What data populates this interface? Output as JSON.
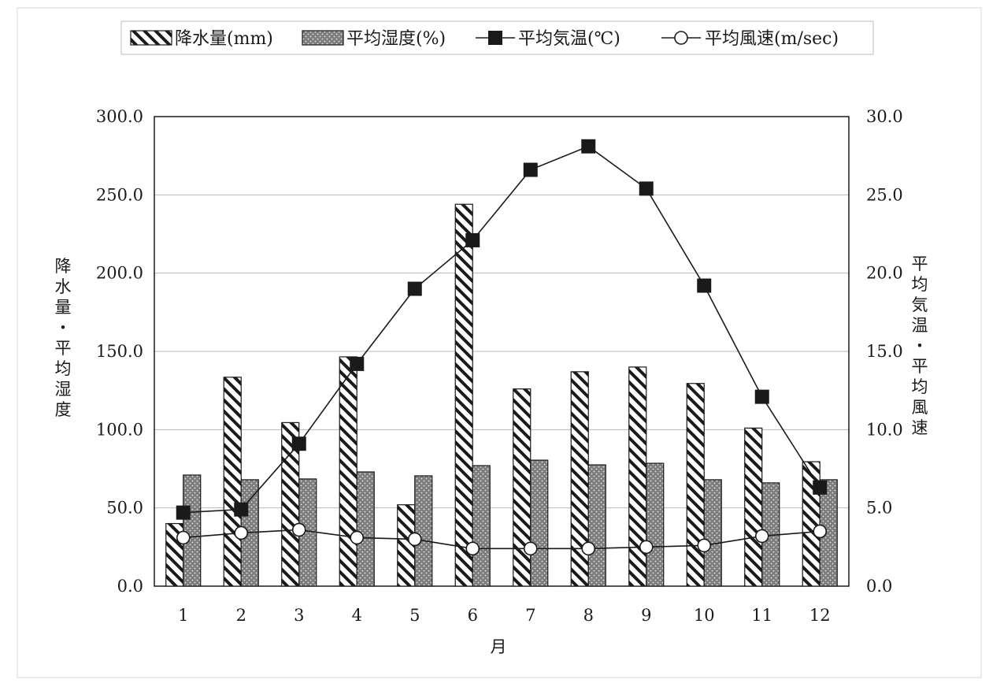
{
  "chart_data": {
    "type": "bar",
    "categories": [
      "1",
      "2",
      "3",
      "4",
      "5",
      "6",
      "7",
      "8",
      "9",
      "10",
      "11",
      "12"
    ],
    "xlabel": "月",
    "ylabel_left": "降水量・平均湿度",
    "ylabel_right": "平均気温・平均風速",
    "ylim_left": [
      0,
      300
    ],
    "ylim_right": [
      0,
      30
    ],
    "y_ticks_left": [
      "0.0",
      "50.0",
      "100.0",
      "150.0",
      "200.0",
      "250.0",
      "300.0"
    ],
    "y_ticks_right": [
      "0.0",
      "5.0",
      "10.0",
      "15.0",
      "20.0",
      "25.0",
      "30.0"
    ],
    "grid": true,
    "legend_position": "top",
    "series": [
      {
        "name": "降水量(mm)",
        "kind": "bar",
        "axis": "left",
        "pattern": "diagonal-hatch",
        "values": [
          40.0,
          133.5,
          104.5,
          146.5,
          52.0,
          244.0,
          126.0,
          137.0,
          140.0,
          129.5,
          101.0,
          79.5
        ]
      },
      {
        "name": "平均湿度(%)",
        "kind": "bar",
        "axis": "left",
        "pattern": "dotted",
        "values": [
          71.0,
          68.0,
          68.5,
          73.0,
          70.5,
          77.0,
          80.5,
          77.5,
          78.5,
          68.0,
          66.0,
          68.0
        ]
      },
      {
        "name": "平均気温(℃)",
        "kind": "line",
        "axis": "right",
        "marker": "filled-square",
        "values": [
          4.7,
          4.9,
          9.1,
          14.2,
          19.0,
          22.1,
          26.6,
          28.1,
          25.4,
          19.2,
          12.1,
          6.3
        ]
      },
      {
        "name": "平均風速(m/sec)",
        "kind": "line",
        "axis": "right",
        "marker": "open-circle",
        "values": [
          3.1,
          3.4,
          3.6,
          3.1,
          3.0,
          2.4,
          2.4,
          2.4,
          2.5,
          2.6,
          3.2,
          3.5
        ]
      }
    ],
    "colors": {
      "bar_stroke": "#1a1a1a",
      "dot_fill": "#8a8a8a",
      "line": "#1a1a1a",
      "grid": "#b8b8b8"
    }
  }
}
